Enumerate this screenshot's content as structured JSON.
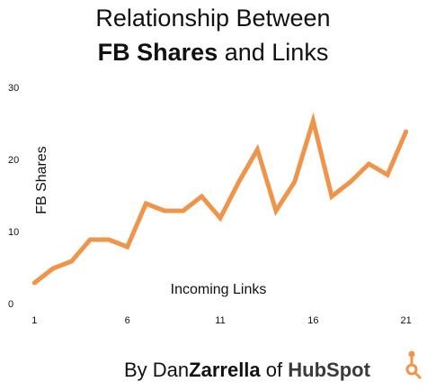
{
  "chart_data": {
    "type": "line",
    "title": {
      "line1": "Relationship Between",
      "line2_bold": "FB Shares",
      "line2_rest": "and Links"
    },
    "x_label": "Incoming Links",
    "y_label": "FB Shares",
    "x": [
      1,
      2,
      3,
      4,
      5,
      6,
      7,
      8,
      9,
      10,
      11,
      12,
      13,
      14,
      15,
      16,
      17,
      18,
      19,
      20,
      21
    ],
    "values": [
      3,
      5,
      6,
      9,
      9,
      8,
      14,
      13,
      13,
      15,
      12,
      17,
      21.5,
      13,
      17,
      25.5,
      15,
      17,
      19.5,
      18,
      24
    ],
    "color": "#f0944a",
    "xlim": [
      0.5,
      21.5
    ],
    "xticks": [
      1,
      6,
      11,
      16,
      21
    ],
    "ylim": [
      0,
      30
    ],
    "yticks": [
      0,
      10,
      20,
      30
    ],
    "grid": false,
    "credit": {
      "prefix": "By Dan",
      "name": "Zarrella",
      "joiner": "of",
      "brand": "HubSpot"
    }
  }
}
